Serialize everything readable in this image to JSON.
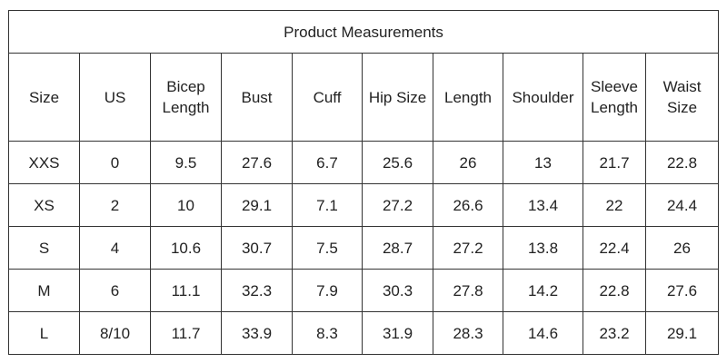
{
  "table": {
    "title": "Product Measurements",
    "columns": [
      "Size",
      "US",
      "Bicep Length",
      "Bust",
      "Cuff",
      "Hip Size",
      "Length",
      "Shoulder",
      "Sleeve Length",
      "Waist Size"
    ],
    "rows": [
      [
        "XXS",
        "0",
        "9.5",
        "27.6",
        "6.7",
        "25.6",
        "26",
        "13",
        "21.7",
        "22.8"
      ],
      [
        "XS",
        "2",
        "10",
        "29.1",
        "7.1",
        "27.2",
        "26.6",
        "13.4",
        "22",
        "24.4"
      ],
      [
        "S",
        "4",
        "10.6",
        "30.7",
        "7.5",
        "28.7",
        "27.2",
        "13.8",
        "22.4",
        "26"
      ],
      [
        "M",
        "6",
        "11.1",
        "32.3",
        "7.9",
        "30.3",
        "27.8",
        "14.2",
        "22.8",
        "27.6"
      ],
      [
        "L",
        "8/10",
        "11.7",
        "33.9",
        "8.3",
        "31.9",
        "28.3",
        "14.6",
        "23.2",
        "29.1"
      ]
    ]
  }
}
